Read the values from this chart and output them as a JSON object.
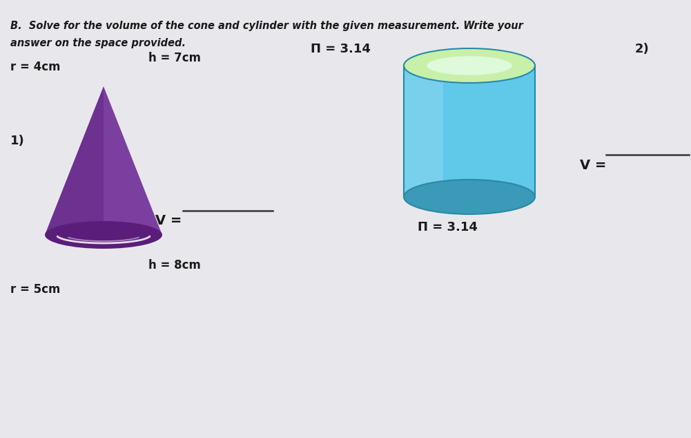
{
  "bg_color": "#e8e8ec",
  "title_line1": "B.  Solve for the volume of the cone and cylinder with the given measurement. Write your",
  "title_line2": "answer on the space provided.",
  "item1_label": "1)",
  "item1_r": "r = 4cm",
  "item1_h": "h = 7cm",
  "item1_pi": "Π = 3.14",
  "item1_v": "V = ",
  "item2_label": "2)",
  "item2_pi": "Π = 3.14",
  "item2_h": "h = 8cm",
  "item2_r": "r = 5cm",
  "item2_v": "V = ",
  "cone_color_main": "#7b3fa0",
  "cone_color_dark": "#5a1d7a",
  "cone_highlight": "#9b5fc0",
  "cylinder_top_color": "#c8f0a8",
  "cylinder_top_inner": "#e8fff0",
  "cylinder_body_color": "#60c8e8",
  "cylinder_body_light": "#90d8f0",
  "cylinder_shadow_color": "#3a9ab8",
  "cylinder_edge_color": "#2a88a8",
  "text_color": "#1a1a1a"
}
